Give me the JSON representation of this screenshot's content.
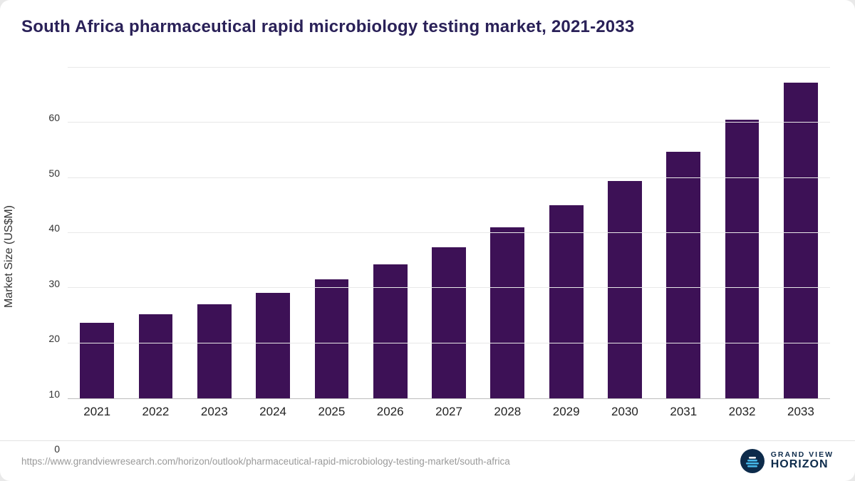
{
  "title": "South Africa pharmaceutical rapid microbiology testing market, 2021-2033",
  "footer": {
    "url": "https://www.grandviewresearch.com/horizon/outlook/pharmaceutical-rapid-microbiology-testing-market/south-africa",
    "brand_top": "GRAND VIEW",
    "brand_bottom": "HORIZON"
  },
  "colors": {
    "bar": "#3d1156",
    "title": "#2a2158",
    "grid": "#e8e8e8",
    "axis_text": "#333333",
    "url_text": "#9a9a9a",
    "brand_navy": "#0d2b4b",
    "brand_blue": "#45b6e8"
  },
  "chart_data": {
    "type": "bar",
    "title": "South Africa pharmaceutical rapid microbiology testing market, 2021-2033",
    "categories": [
      "2021",
      "2022",
      "2023",
      "2024",
      "2025",
      "2026",
      "2027",
      "2028",
      "2029",
      "2030",
      "2031",
      "2032",
      "2033"
    ],
    "values": [
      13.7,
      15.2,
      17.1,
      19.2,
      21.6,
      24.3,
      27.4,
      31.0,
      35.0,
      39.5,
      44.7,
      50.5,
      57.3
    ],
    "xlabel": "",
    "ylabel": "Market Size (US$M)",
    "ylim": [
      0,
      60
    ],
    "yticks": [
      0,
      10,
      20,
      30,
      40,
      50,
      60
    ],
    "grid": true,
    "legend": false
  }
}
